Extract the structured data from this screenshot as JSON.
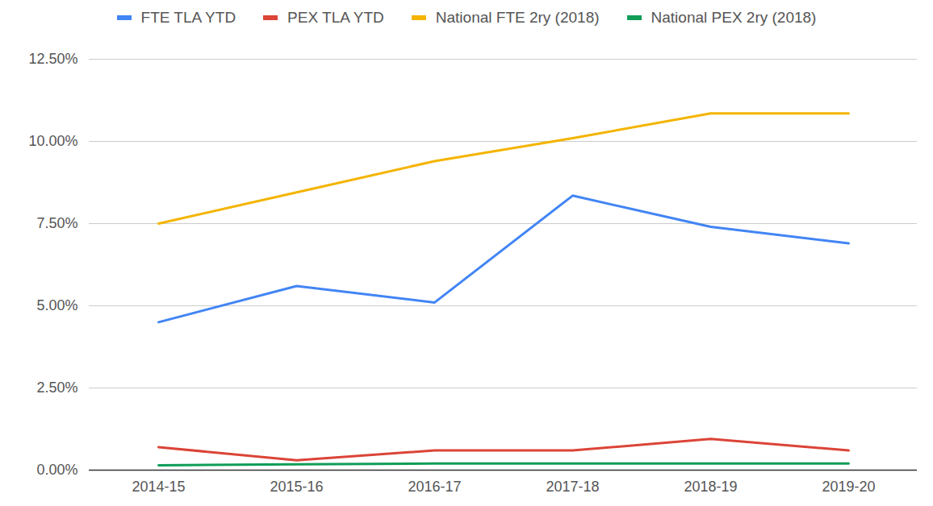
{
  "chart_data": {
    "type": "line",
    "categories": [
      "2014-15",
      "2015-16",
      "2016-17",
      "2017-18",
      "2018-19",
      "2019-20"
    ],
    "series": [
      {
        "name": "FTE TLA YTD",
        "color": "#4285f4",
        "values": [
          4.5,
          5.6,
          5.1,
          8.35,
          7.4,
          6.9
        ]
      },
      {
        "name": "PEX TLA YTD",
        "color": "#db4437",
        "values": [
          0.7,
          0.3,
          0.6,
          0.6,
          0.95,
          0.6
        ]
      },
      {
        "name": "National FTE 2ry (2018)",
        "color": "#f4b400",
        "values": [
          7.5,
          8.45,
          9.4,
          10.1,
          10.85,
          10.85
        ]
      },
      {
        "name": "National PEX 2ry (2018)",
        "color": "#0f9d58",
        "values": [
          0.15,
          0.18,
          0.2,
          0.2,
          0.2,
          0.2
        ]
      }
    ],
    "ylim": [
      0,
      12.5
    ],
    "yticks": [
      {
        "value": 0,
        "label": "0.00%"
      },
      {
        "value": 2.5,
        "label": "2.50%"
      },
      {
        "value": 5,
        "label": "5.00%"
      },
      {
        "value": 7.5,
        "label": "7.50%"
      },
      {
        "value": 10,
        "label": "10.00%"
      },
      {
        "value": 12.5,
        "label": "12.50%"
      }
    ],
    "grid": true,
    "legend": "top"
  }
}
